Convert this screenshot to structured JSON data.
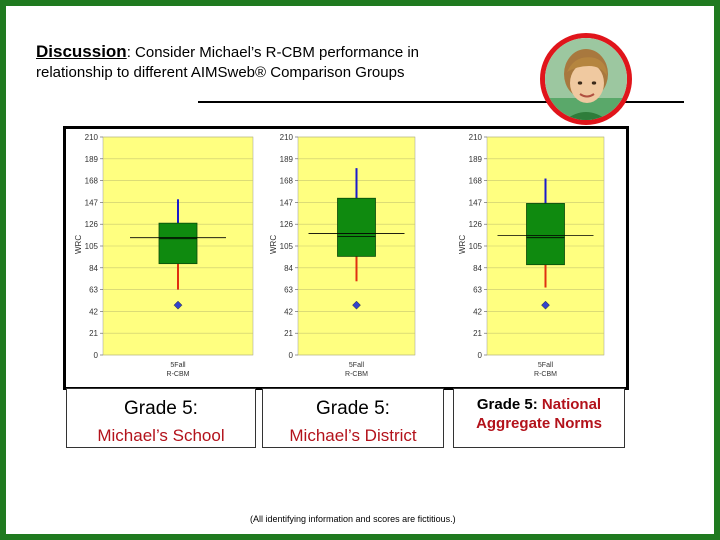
{
  "heading": {
    "keyword": "Discussion",
    "line1_rest": ":  Consider Michael’s R-CBM performance in",
    "line2": "relationship to different AIMSweb® Comparison Groups"
  },
  "labels": [
    {
      "line1": "Grade 5:",
      "line2": "Michael’s School"
    },
    {
      "line1": "Grade 5:",
      "line2": "Michael’s District"
    },
    {
      "line1_prefix": "Grade 5: ",
      "line1_highlight": "National",
      "line2": "Aggregate Norms"
    }
  ],
  "footnote": "(All identifying information and scores are fictitious.)",
  "colors": {
    "frame": "#1f7a1f",
    "plot_bg": "#ffff80",
    "box_fill": "#0f8a0f",
    "upper_whisker": "#1a1acc",
    "lower_whisker": "#e03010",
    "student_point": "#3344cc",
    "emphasis_text": "#b3121b",
    "avatar_ring": "#e0151b"
  },
  "chart_data": [
    {
      "type": "boxplot",
      "ylabel": "WRC",
      "category": [
        "5Fall",
        "R-CBM"
      ],
      "yticks": [
        0,
        21,
        42,
        63,
        84,
        105,
        126,
        147,
        168,
        189,
        210
      ],
      "ylim": [
        0,
        210
      ],
      "box": {
        "lower_whisker": 63,
        "q1": 88,
        "median": 112,
        "q3": 127,
        "upper_whisker": 150
      },
      "mean_line": 113,
      "student_score": 48,
      "grid": true
    },
    {
      "type": "boxplot",
      "ylabel": "WRC",
      "category": [
        "5Fall",
        "R-CBM"
      ],
      "yticks": [
        0,
        21,
        42,
        63,
        84,
        105,
        126,
        147,
        168,
        189,
        210
      ],
      "ylim": [
        0,
        210
      ],
      "box": {
        "lower_whisker": 71,
        "q1": 95,
        "median": 114,
        "q3": 151,
        "upper_whisker": 180
      },
      "mean_line": 117,
      "student_score": 48,
      "grid": true
    },
    {
      "type": "boxplot",
      "ylabel": "WRC",
      "category": [
        "5Fall",
        "R-CBM"
      ],
      "yticks": [
        0,
        21,
        42,
        63,
        84,
        105,
        126,
        147,
        168,
        189,
        210
      ],
      "ylim": [
        0,
        210
      ],
      "box": {
        "lower_whisker": 65,
        "q1": 87,
        "median": 113,
        "q3": 146,
        "upper_whisker": 170
      },
      "mean_line": 115,
      "student_score": 48,
      "grid": true
    }
  ]
}
